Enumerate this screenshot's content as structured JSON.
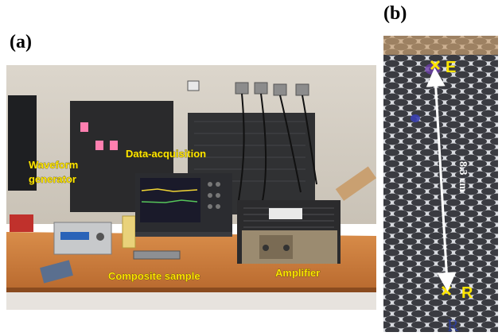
{
  "panel_a": {
    "label": "(a)",
    "captions": {
      "waveform_line1": "Waveform",
      "waveform_line2": "generator",
      "data_acquisition": "Data-acquisition",
      "composite_sample": "Composite sample",
      "amplifier": "Amplifier"
    }
  },
  "panel_b": {
    "label": "(b)",
    "marker_top": "E",
    "marker_bottom": "R",
    "distance": "8.3 cm"
  },
  "colors": {
    "caption": "#ffe600",
    "arrow": "#ffffff",
    "background": "#ffffff"
  }
}
